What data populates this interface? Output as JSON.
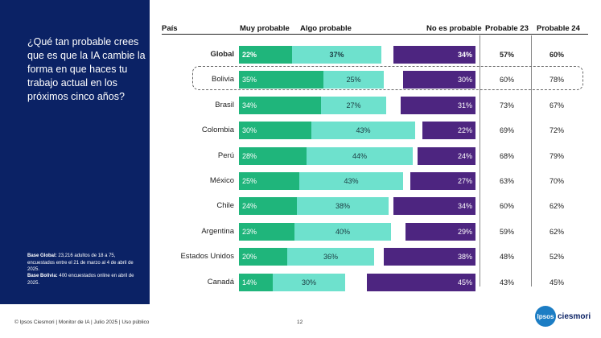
{
  "sidebar": {
    "question": "¿Qué tan probable crees que es que la IA cambie la forma en que haces tu trabajo actual en los próximos cinco años?",
    "base_global_label": "Base Global:",
    "base_global_text": "23,216 adultos de 18 a 75, encuestados entre el 21 de marzo al 4 de abril de 2025.",
    "base_bolivia_label": "Base Bolivia:",
    "base_bolivia_text": "400 encuestados online en abril de 2025."
  },
  "headers": {
    "pais": "País",
    "muy": "Muy probable",
    "algo": "Algo probable",
    "no": "No es probable",
    "p23": "Probable 23",
    "p24": "Probable 24"
  },
  "footer": {
    "text": "© Ipsos Ciesmori | Monitor de IA | Julio 2025 | Uso público",
    "page": "12",
    "logo_circle": "Ipsos",
    "logo_text": "ciesmori"
  },
  "colors": {
    "muy": "#1fb57b",
    "algo": "#6ee1cd",
    "no": "#4d2580",
    "sidebar": "#0b2265"
  },
  "chart_data": {
    "type": "bar",
    "stacked": true,
    "categories": [
      "Global",
      "Bolivia",
      "Brasil",
      "Colombia",
      "Perú",
      "México",
      "Chile",
      "Argentina",
      "Estados Unidos",
      "Canadá"
    ],
    "series": [
      {
        "name": "Muy probable",
        "values": [
          22,
          35,
          34,
          30,
          28,
          25,
          24,
          23,
          20,
          14
        ]
      },
      {
        "name": "Algo probable",
        "values": [
          37,
          25,
          27,
          43,
          44,
          43,
          38,
          40,
          36,
          30
        ]
      },
      {
        "name": "No es probable",
        "values": [
          34,
          30,
          31,
          22,
          24,
          27,
          34,
          29,
          38,
          45
        ]
      }
    ],
    "probable_23": [
      57,
      60,
      73,
      69,
      68,
      63,
      60,
      59,
      48,
      43
    ],
    "probable_24": [
      60,
      78,
      67,
      72,
      79,
      70,
      62,
      62,
      52,
      45
    ],
    "value_suffix": "%",
    "highlight": "Bolivia"
  }
}
